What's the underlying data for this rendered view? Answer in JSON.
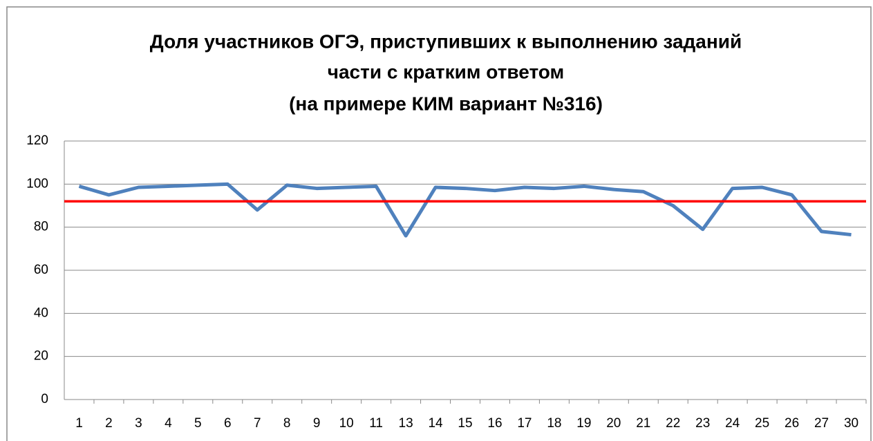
{
  "chart_data": {
    "type": "line",
    "title": [
      "Доля участников ОГЭ,  приступивших к выполнению заданий",
      "части с кратким ответом",
      "(на примере КИМ вариант №316)"
    ],
    "categories": [
      "1",
      "2",
      "3",
      "4",
      "5",
      "6",
      "7",
      "8",
      "9",
      "10",
      "11",
      "13",
      "14",
      "15",
      "16",
      "17",
      "18",
      "19",
      "20",
      "21",
      "22",
      "23",
      "24",
      "25",
      "26",
      "27",
      "30"
    ],
    "values": [
      99,
      95,
      98.5,
      99,
      99.5,
      100,
      88,
      99.5,
      98,
      98.5,
      99,
      76,
      98.5,
      98,
      97,
      98.5,
      98,
      99,
      97.5,
      96.5,
      90,
      79,
      98,
      98.5,
      95,
      78,
      76.5
    ],
    "color": "#4f81bd",
    "reference_line": {
      "value": 92,
      "color": "#ff0000"
    },
    "ylim": [
      0,
      120
    ],
    "yticks": [
      0,
      20,
      40,
      60,
      80,
      100,
      120
    ],
    "grid": true
  }
}
